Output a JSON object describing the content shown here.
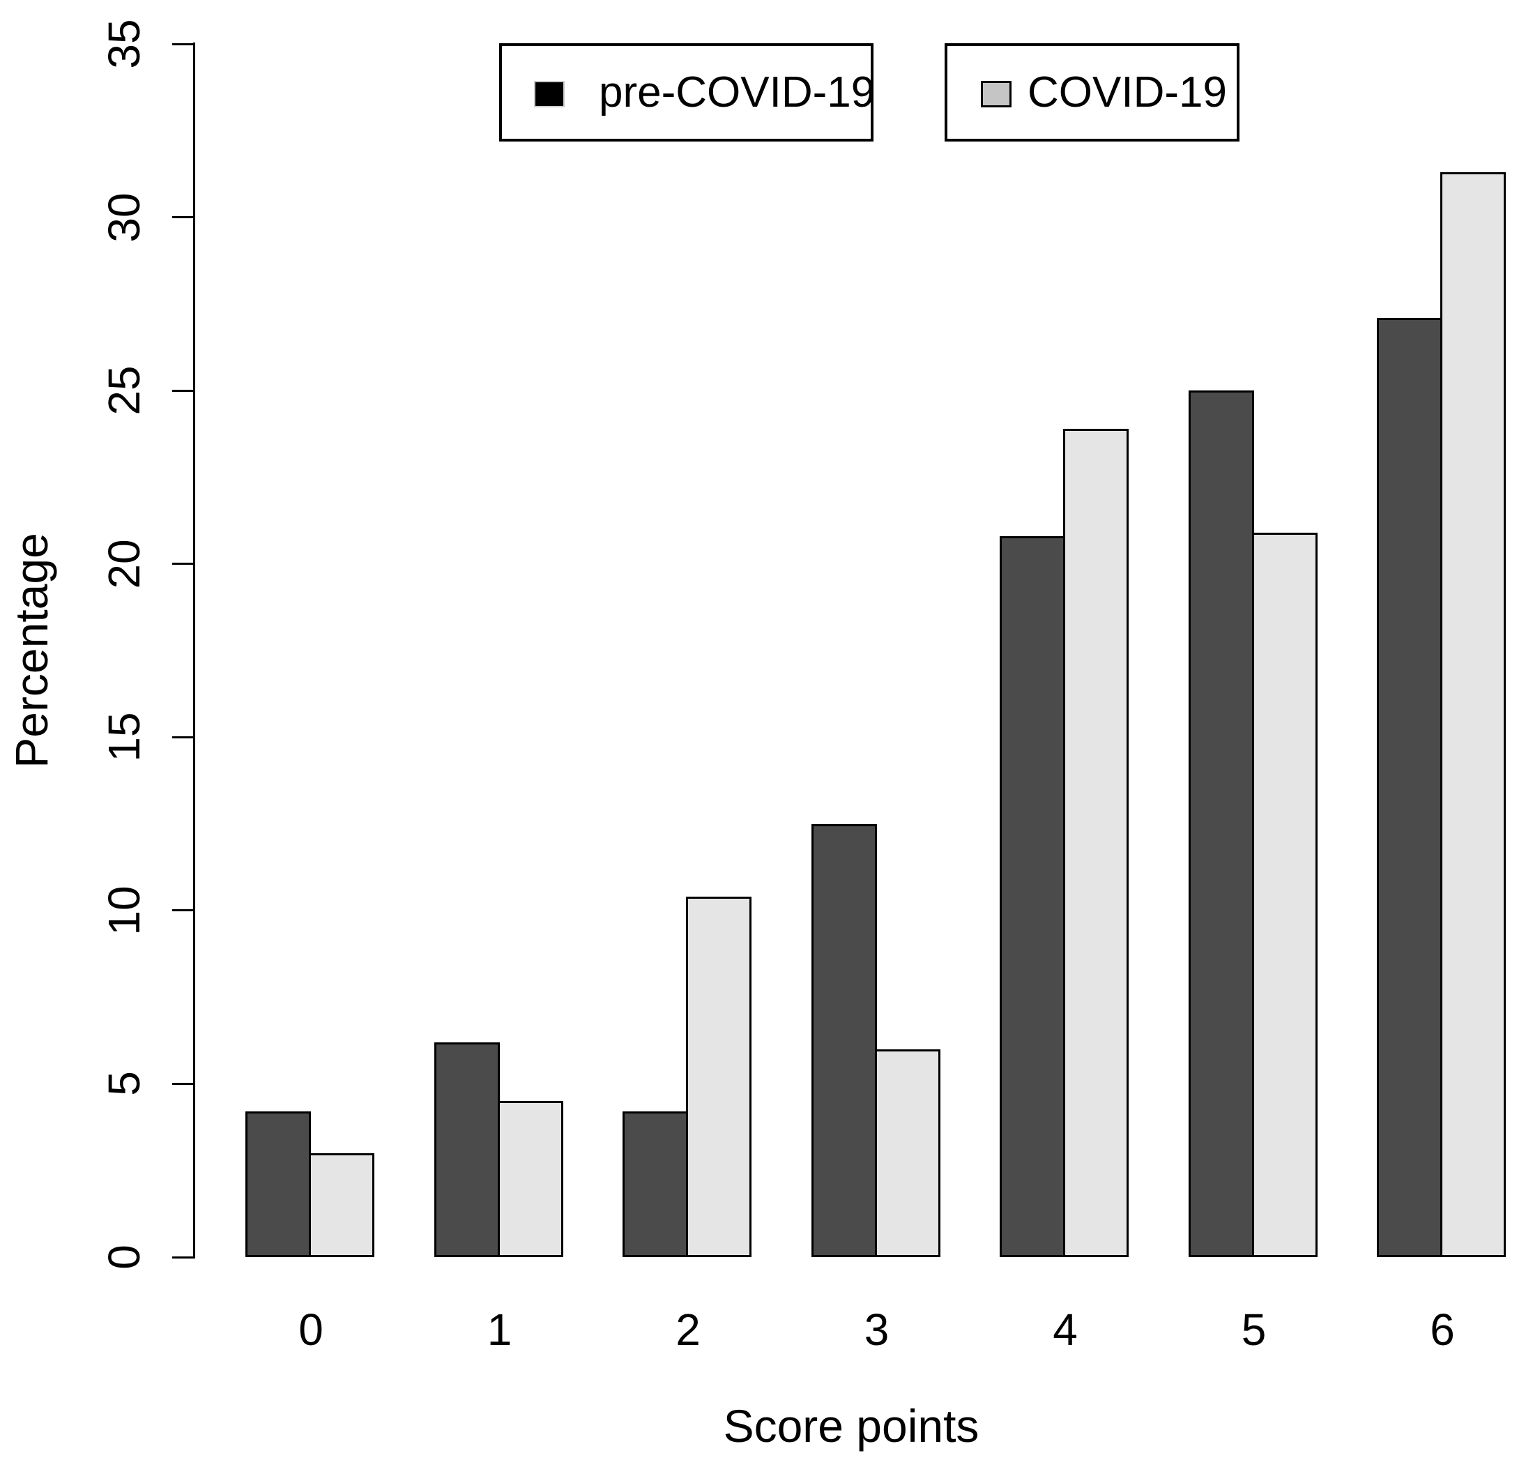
{
  "chart_data": {
    "type": "bar",
    "grouped": true,
    "title": "",
    "xlabel": "Score points",
    "ylabel": "Percentage",
    "categories": [
      "0",
      "1",
      "2",
      "3",
      "4",
      "5",
      "6"
    ],
    "series": [
      {
        "name": "pre-COVID-19",
        "bar_color": "#4b4b4b",
        "legend_swatch_color": "#000000",
        "values": [
          4.2,
          6.2,
          4.2,
          12.5,
          20.8,
          25.0,
          27.1
        ]
      },
      {
        "name": "COVID-19",
        "bar_color": "#e5e5e5",
        "legend_swatch_color": "#c5c5c5",
        "values": [
          3.0,
          4.5,
          10.4,
          6.0,
          23.9,
          20.9,
          31.3
        ]
      }
    ],
    "ylim": [
      0,
      35
    ],
    "yticks": [
      0,
      5,
      10,
      15,
      20,
      25,
      30,
      35
    ],
    "grid": false,
    "legend_position": "top-center",
    "bar_border_color": "#000000",
    "axis_color": "#000000",
    "background_color": "#ffffff"
  }
}
